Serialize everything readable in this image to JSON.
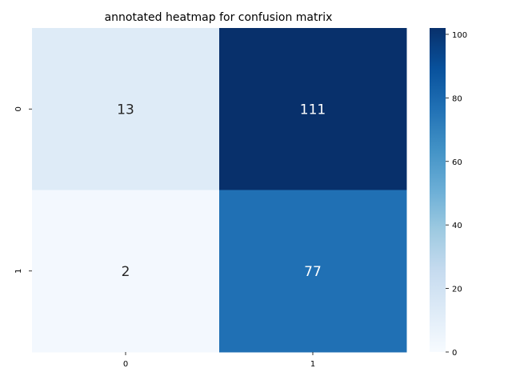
{
  "chart_data": {
    "type": "heatmap",
    "title": "annotated heatmap for confusion matrix",
    "x_categories": [
      "0",
      "1"
    ],
    "y_categories": [
      "0",
      "1"
    ],
    "values": [
      [
        13,
        111
      ],
      [
        2,
        77
      ]
    ],
    "annotations": [
      [
        "13",
        "111"
      ],
      [
        "2",
        "77"
      ]
    ],
    "colorbar": {
      "range": [
        0,
        102
      ],
      "ticks": [
        0,
        20,
        40,
        60,
        80,
        100
      ],
      "tick_labels": [
        "0",
        "20",
        "40",
        "60",
        "80",
        "100"
      ]
    },
    "colormap": "Blues",
    "grid": false,
    "xlabel": "",
    "ylabel": ""
  }
}
